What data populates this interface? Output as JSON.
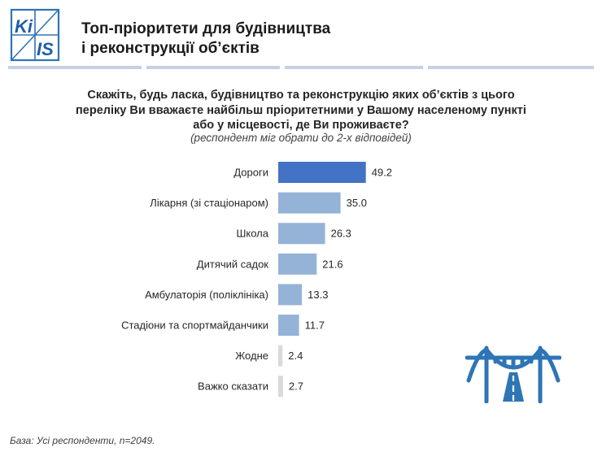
{
  "logo": {
    "text_left": "Ki",
    "text_right": "IS"
  },
  "header": {
    "title": "Топ-пріоритети для будівництва\nі реконструкції об’єктів"
  },
  "question": {
    "text": "Скажіть, будь ласка, будівництво та реконструкцію яких об’єктів з цього\nпереліку Ви вважаєте найбільш пріоритетними у Вашому населеному пункті\nабо у місцевості, де Ви проживаєте?",
    "note": "(респондент міг обрати до 2-х відповідей)"
  },
  "chart_data": {
    "type": "bar",
    "orientation": "horizontal",
    "categories": [
      "Дороги",
      "Лікарня (зі стаціонаром)",
      "Школа",
      "Дитячий садок",
      "Амбулаторія (поліклініка)",
      "Стадіони та спортмайданчики",
      "Жодне",
      "Важко сказати"
    ],
    "values": [
      49.2,
      35.0,
      26.3,
      21.6,
      13.3,
      11.7,
      2.4,
      2.7
    ],
    "value_labels": [
      "49.2",
      "35.0",
      "26.3",
      "21.6",
      "13.3",
      "11.7",
      "2.4",
      "2.7"
    ],
    "colors": [
      "#4472c4",
      "#95b3d7",
      "#95b3d7",
      "#95b3d7",
      "#95b3d7",
      "#95b3d7",
      "#d9d9d9",
      "#d9d9d9"
    ],
    "title": "",
    "xlabel": "",
    "ylabel": "",
    "xlim": [
      0,
      100
    ],
    "grid": false,
    "legend": "none"
  },
  "footer": {
    "base": "База: Усі респонденти, n=2049."
  },
  "icons": {
    "logo": "kiis-logo-icon",
    "decor": "bridge-road-icon"
  }
}
